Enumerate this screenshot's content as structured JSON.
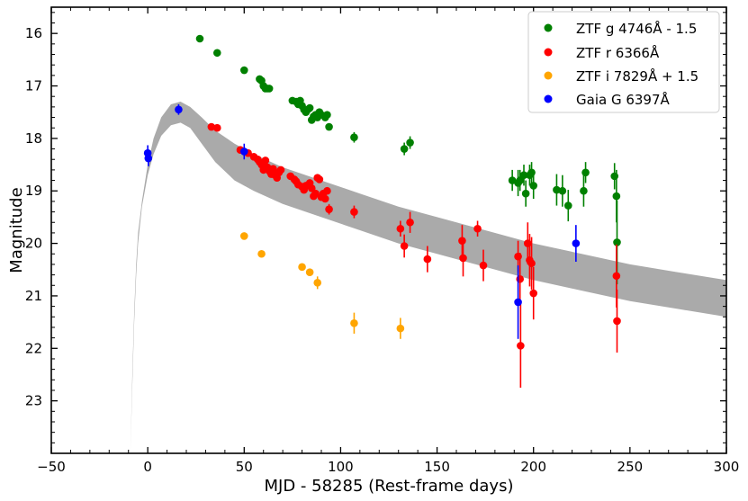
{
  "chart_data": {
    "type": "scatter",
    "title": "",
    "xlabel": "MJD - 58285 (Rest-frame days)",
    "ylabel": "Magnitude",
    "xlim": [
      -50,
      300
    ],
    "ylim": [
      24,
      15.5
    ],
    "y_inverted": true,
    "x_ticks": [
      -50,
      0,
      50,
      100,
      150,
      200,
      250,
      300
    ],
    "x_tick_labels": [
      "−50",
      "0",
      "50",
      "100",
      "150",
      "200",
      "250",
      "300"
    ],
    "y_ticks": [
      16,
      17,
      18,
      19,
      20,
      21,
      22,
      23
    ],
    "y_tick_labels": [
      "16",
      "17",
      "18",
      "19",
      "20",
      "21",
      "22",
      "23"
    ],
    "grid": false,
    "legend_position": "top-right",
    "model_band": {
      "color": "#aaaaaa",
      "upper": [
        [
          -9,
          24
        ],
        [
          -8,
          22.5
        ],
        [
          -7,
          21.3
        ],
        [
          -6,
          20.4
        ],
        [
          -5,
          19.8
        ],
        [
          -3,
          19.2
        ],
        [
          0,
          18.5
        ],
        [
          3,
          18.0
        ],
        [
          7,
          17.6
        ],
        [
          12,
          17.35
        ],
        [
          17,
          17.3
        ],
        [
          22,
          17.4
        ],
        [
          28,
          17.6
        ],
        [
          35,
          17.85
        ],
        [
          45,
          18.1
        ],
        [
          55,
          18.3
        ],
        [
          70,
          18.55
        ],
        [
          90,
          18.8
        ],
        [
          110,
          19.05
        ],
        [
          130,
          19.3
        ],
        [
          150,
          19.5
        ],
        [
          175,
          19.75
        ],
        [
          200,
          20.0
        ],
        [
          225,
          20.2
        ],
        [
          250,
          20.4
        ],
        [
          275,
          20.55
        ],
        [
          300,
          20.7
        ]
      ],
      "lower": [
        [
          300,
          21.4
        ],
        [
          275,
          21.25
        ],
        [
          250,
          21.1
        ],
        [
          225,
          20.9
        ],
        [
          200,
          20.7
        ],
        [
          175,
          20.45
        ],
        [
          150,
          20.2
        ],
        [
          130,
          20.0
        ],
        [
          110,
          19.75
        ],
        [
          90,
          19.5
        ],
        [
          70,
          19.25
        ],
        [
          55,
          19.0
        ],
        [
          45,
          18.8
        ],
        [
          35,
          18.45
        ],
        [
          28,
          18.1
        ],
        [
          22,
          17.8
        ],
        [
          17,
          17.7
        ],
        [
          12,
          17.75
        ],
        [
          7,
          17.95
        ],
        [
          3,
          18.3
        ],
        [
          0,
          18.7
        ],
        [
          -3,
          19.3
        ],
        [
          -5,
          20.0
        ],
        [
          -6,
          20.6
        ],
        [
          -7,
          21.5
        ],
        [
          -8,
          22.7
        ],
        [
          -9,
          24
        ]
      ]
    },
    "series": [
      {
        "name": "ZTF g 4746Å - 1.5",
        "color": "#008000",
        "points": [
          [
            27,
            16.1,
            0
          ],
          [
            36,
            16.37,
            0
          ],
          [
            50,
            16.7,
            0
          ],
          [
            58,
            16.87,
            0
          ],
          [
            59,
            16.9,
            0
          ],
          [
            60,
            17.0,
            0
          ],
          [
            61,
            17.05,
            0
          ],
          [
            62,
            17.05,
            0
          ],
          [
            63,
            17.05,
            0
          ],
          [
            75,
            17.28,
            0
          ],
          [
            77,
            17.3,
            0
          ],
          [
            78,
            17.35,
            0
          ],
          [
            79,
            17.28,
            0
          ],
          [
            80,
            17.38,
            0
          ],
          [
            81,
            17.45,
            0
          ],
          [
            82,
            17.5,
            0
          ],
          [
            83,
            17.45,
            0
          ],
          [
            84,
            17.42,
            0
          ],
          [
            85,
            17.65,
            0
          ],
          [
            86,
            17.58,
            0
          ],
          [
            87,
            17.55,
            0
          ],
          [
            88,
            17.6,
            0
          ],
          [
            89,
            17.5,
            0
          ],
          [
            90,
            17.55,
            0
          ],
          [
            92,
            17.6,
            0
          ],
          [
            93,
            17.55,
            0
          ],
          [
            94,
            17.78,
            0
          ],
          [
            107,
            17.98,
            0.1
          ],
          [
            133,
            18.2,
            0.12
          ],
          [
            136,
            18.08,
            0.12
          ],
          [
            189,
            18.8,
            0.2
          ],
          [
            192,
            18.85,
            0.25
          ],
          [
            193,
            18.8,
            0.2
          ],
          [
            195,
            18.7,
            0.2
          ],
          [
            196,
            19.05,
            0.25
          ],
          [
            198,
            18.7,
            0.2
          ],
          [
            199,
            18.65,
            0.2
          ],
          [
            200,
            18.9,
            0.25
          ],
          [
            212,
            18.98,
            0.3
          ],
          [
            215,
            19.0,
            0.3
          ],
          [
            218,
            19.28,
            0.3
          ],
          [
            226,
            19.0,
            0.3
          ],
          [
            227,
            18.65,
            0.2
          ],
          [
            242,
            18.72,
            0.25
          ],
          [
            243,
            19.1,
            0.5
          ],
          [
            243.3,
            19.98,
            0.8
          ]
        ]
      },
      {
        "name": "ZTF r 6366Å",
        "color": "#ff0000",
        "points": [
          [
            33,
            17.78,
            0
          ],
          [
            36,
            17.8,
            0
          ],
          [
            48,
            18.22,
            0
          ],
          [
            52,
            18.28,
            0
          ],
          [
            55,
            18.35,
            0
          ],
          [
            57,
            18.4,
            0
          ],
          [
            58,
            18.45,
            0
          ],
          [
            59,
            18.5,
            0
          ],
          [
            60,
            18.6,
            0
          ],
          [
            61,
            18.42,
            0
          ],
          [
            62,
            18.55,
            0
          ],
          [
            63,
            18.62,
            0
          ],
          [
            64,
            18.68,
            0
          ],
          [
            65,
            18.58,
            0
          ],
          [
            66,
            18.7,
            0
          ],
          [
            67,
            18.75,
            0
          ],
          [
            68,
            18.65,
            0
          ],
          [
            69,
            18.6,
            0
          ],
          [
            74,
            18.72,
            0
          ],
          [
            76,
            18.78,
            0
          ],
          [
            77,
            18.82,
            0
          ],
          [
            78,
            18.88,
            0
          ],
          [
            80,
            18.92,
            0
          ],
          [
            81,
            18.98,
            0
          ],
          [
            82,
            18.9,
            0
          ],
          [
            84,
            18.85,
            0
          ],
          [
            85,
            18.95,
            0
          ],
          [
            86,
            19.1,
            0
          ],
          [
            87,
            19.05,
            0
          ],
          [
            88,
            18.75,
            0
          ],
          [
            89,
            18.78,
            0
          ],
          [
            90,
            19.12,
            0
          ],
          [
            91,
            19.05,
            0
          ],
          [
            92,
            19.15,
            0
          ],
          [
            93,
            19.0,
            0
          ],
          [
            94,
            19.35,
            0.1
          ],
          [
            107,
            19.4,
            0.12
          ],
          [
            131,
            19.72,
            0.15
          ],
          [
            133,
            20.05,
            0.22
          ],
          [
            136,
            19.6,
            0.2
          ],
          [
            145,
            20.3,
            0.25
          ],
          [
            163,
            19.95,
            0.3
          ],
          [
            163.5,
            20.28,
            0.35
          ],
          [
            171,
            19.72,
            0.15
          ],
          [
            174,
            20.42,
            0.3
          ],
          [
            192,
            20.25,
            0.3
          ],
          [
            193,
            20.68,
            0.5
          ],
          [
            193.3,
            21.95,
            0.8
          ],
          [
            197,
            20.0,
            0.4
          ],
          [
            198,
            20.32,
            0.5
          ],
          [
            199,
            20.38,
            0.5
          ],
          [
            200,
            20.95,
            0.5
          ],
          [
            243,
            20.62,
            0.6
          ],
          [
            243.3,
            21.48,
            0.6
          ]
        ]
      },
      {
        "name": "ZTF i 7829Å + 1.5",
        "color": "#ffa500",
        "points": [
          [
            50,
            19.86,
            0
          ],
          [
            59,
            20.2,
            0
          ],
          [
            80,
            20.45,
            0
          ],
          [
            84,
            20.55,
            0
          ],
          [
            88,
            20.75,
            0.12
          ],
          [
            107,
            21.52,
            0.2
          ],
          [
            131,
            21.62,
            0.2
          ]
        ]
      },
      {
        "name": "Gaia G 6397Å",
        "color": "#0000ff",
        "points": [
          [
            0,
            18.28,
            0.15
          ],
          [
            0.3,
            18.38,
            0.15
          ],
          [
            16,
            17.45,
            0.1
          ],
          [
            50,
            18.25,
            0.15
          ],
          [
            192,
            21.12,
            0.7
          ],
          [
            222,
            20.0,
            0.35
          ]
        ]
      }
    ]
  }
}
